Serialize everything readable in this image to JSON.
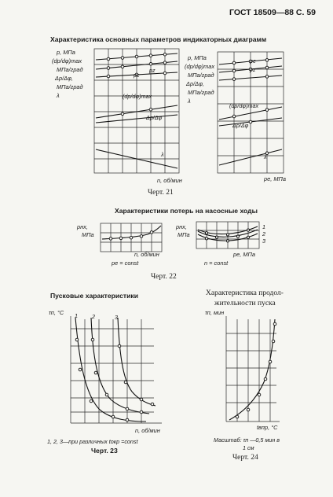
{
  "header": "ГОСТ 18509—88 С. 59",
  "fig21": {
    "title": "Характеристика основных параметров индикаторных диаграмм",
    "left_ylabels": [
      "p, МПа",
      "(dp/dφ)max",
      "МПа/град",
      "Δp/Δφ,",
      "МПа/град",
      "λ"
    ],
    "left_curve_labels": [
      "pc",
      "pz",
      "(dp/dφ)max",
      "Δp/Δφ",
      "λ"
    ],
    "left_xlabel": "n, об/мин",
    "right_ylabels": [
      "p, МПа",
      "(dp/dφ)max",
      "МПа/град",
      "Δp/Δφ,",
      "МПа/град",
      "λ"
    ],
    "right_curve_labels": [
      "pc",
      "pz",
      "(dp/dφ)max",
      "Δp/Δφ",
      "λ"
    ],
    "right_xlabel": "pe, МПа",
    "caption": "Черт. 21"
  },
  "fig22": {
    "title": "Характеристики потерь на насосные ходы",
    "left_ylabel": [
      "pнх,",
      "МПа"
    ],
    "left_xlabel": "n, об/мин",
    "left_cond": "pe = const",
    "right_ylabel": [
      "pнх,",
      "МПа"
    ],
    "right_xlabel": "pe, МПа",
    "right_cond": "n = const",
    "curve_numbers": [
      "1",
      "2",
      "3"
    ],
    "caption": "Черт. 22"
  },
  "fig23": {
    "title": "Пусковые характеристики",
    "ylabel": "τп, °C",
    "curve_numbers": [
      "1",
      "2",
      "3"
    ],
    "xlabel": "n, об/мин",
    "note": "1, 2, 3—при различных tокр =const",
    "caption": "Черт. 23"
  },
  "fig24": {
    "title": [
      "Характеристика продол-",
      "жительности пуска"
    ],
    "ylabel": "τп, мин",
    "xlabel": "tвпр, °C",
    "scale_note": [
      "Масштаб: τп —0,5 мин в",
      "1 см"
    ],
    "caption": "Черт. 24"
  }
}
